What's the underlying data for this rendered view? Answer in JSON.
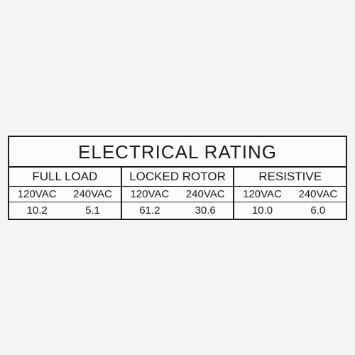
{
  "rating_table": {
    "type": "table",
    "title": "ELECTRICAL RATING",
    "title_fontsize": 26,
    "label_fontsize": 17,
    "cell_fontsize": 15,
    "border_color": "#1a1a1a",
    "background_color": "#fdfdfd",
    "text_color": "#1a1a1a",
    "outer_border_width": 2,
    "inner_border_width": 1,
    "sections": [
      {
        "label": "FULL LOAD",
        "voltages": [
          "120VAC",
          "240VAC"
        ],
        "values": [
          "10.2",
          "5.1"
        ]
      },
      {
        "label": "LOCKED ROTOR",
        "voltages": [
          "120VAC",
          "240VAC"
        ],
        "values": [
          "61.2",
          "30.6"
        ]
      },
      {
        "label": "RESISTIVE",
        "voltages": [
          "120VAC",
          "240VAC"
        ],
        "values": [
          "10.0",
          "6.0"
        ]
      }
    ]
  }
}
